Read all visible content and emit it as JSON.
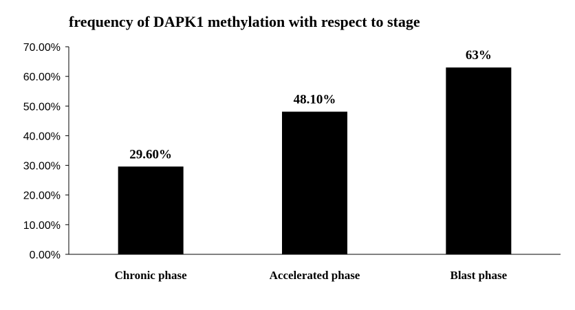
{
  "chart_data": {
    "type": "bar",
    "title": "frequency of DAPK1 methylation with respect to stage",
    "categories": [
      "Chronic phase",
      "Accelerated phase",
      "Blast phase"
    ],
    "values": [
      29.6,
      48.1,
      63
    ],
    "data_labels": [
      "29.60%",
      "48.10%",
      "63%"
    ],
    "ylim": [
      0,
      70
    ],
    "yticks": [
      0,
      10,
      20,
      30,
      40,
      50,
      60,
      70
    ],
    "ytick_labels": [
      "0.00%",
      "10.00%",
      "20.00%",
      "30.00%",
      "40.00%",
      "50.00%",
      "60.00%",
      "70.00%"
    ],
    "xlabel": "",
    "ylabel": "",
    "grid": false,
    "legend": "none",
    "bar_color": "#000000"
  }
}
